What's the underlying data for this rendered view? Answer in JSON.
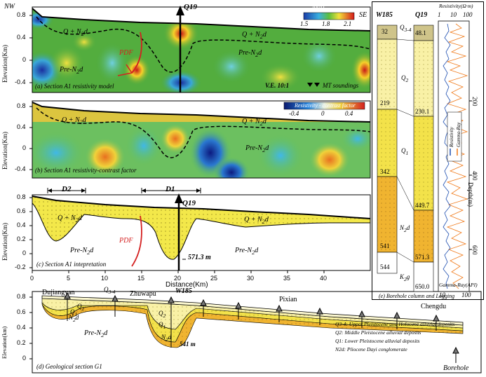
{
  "panel_a": {
    "nw": "NW",
    "se": "SE",
    "q19": "Q19",
    "unit_q": "Q + N",
    "unit_q_sub": "2",
    "unit_q_tail": "d",
    "unit_q2": "Q + N",
    "unit_q2_sub": "2",
    "unit_q2_tail": "d",
    "pre": "Pre-N",
    "pre_sub": "2",
    "pre_tail": "d",
    "pre2": "Pre-N",
    "pre2_sub": "2",
    "pre2_tail": "d",
    "pdf": "PDF",
    "caption": "(a) Section A1 resistivity model",
    "ve": "V.E. 10:1",
    "mt": "MT soundings",
    "colorbar_title": "lg(ρ)",
    "colorbar_ticks": [
      "1.5",
      "1.8",
      "2.1"
    ],
    "ylabel": "Elevation(Km)",
    "yticks": [
      "0.8",
      "0.4",
      "0",
      "-0.4"
    ]
  },
  "panel_b": {
    "unit_q": "Q + N",
    "unit_q_sub": "2",
    "unit_q_tail": "d",
    "unit_q2": "Q + N",
    "unit_q2_sub": "2",
    "unit_q2_tail": "d",
    "pre": "Pre-N",
    "pre_sub": "2",
    "pre_tail": "d",
    "caption": "(b) Section A1 resistivity-contrast factor",
    "colorbar_title": "Resistivity - contrast factor",
    "colorbar_ticks": [
      "-0.4",
      "0",
      "0.4"
    ],
    "ylabel": "Elevation(Km)",
    "yticks": [
      "0.8",
      "0.4",
      "0",
      "-0.4"
    ]
  },
  "panel_c": {
    "d1": "D1",
    "d2": "D2",
    "q19": "Q19",
    "unit_q": "Q + N",
    "unit_q_sub": "2",
    "unit_q_tail": "d",
    "unit_q2": "Q + N",
    "unit_q2_sub": "2",
    "unit_q2_tail": "d",
    "pre": "Pre-N",
    "pre_sub": "2",
    "pre_tail": "d",
    "pre2": "Pre-N",
    "pre2_sub": "2",
    "pre2_tail": "d",
    "pdf": "PDF",
    "depth": "571.3 m",
    "caption": "(c) Section A1 intepretation",
    "ylabel": "Elevation(Km)",
    "yticks": [
      "0.8",
      "0.6",
      "0.4",
      "0.2",
      "0",
      "-0.2"
    ],
    "xticks": [
      "0",
      "5",
      "10",
      "15",
      "20",
      "25",
      "30",
      "35",
      "40"
    ],
    "xlabel": "Distance(Km)"
  },
  "panel_d": {
    "places": [
      "Dujiangyan",
      "Zhuwapu",
      "Pixian",
      "Chengdu"
    ],
    "w185": "W185",
    "q34": "Q",
    "q34_sub": "3-4",
    "q2": "Q",
    "q2_sub": "2",
    "q1": "Q",
    "q1_sub": "1",
    "q2b": "Q",
    "q2b_sub": "2",
    "q1b": "Q",
    "q1b_sub": "1",
    "n2d": "N",
    "n2d_sub": "2",
    "n2d_tail": "d",
    "n2d2": "N",
    "n2d2_sub": "2",
    "n2d2_tail": "d",
    "pre": "Pre-N",
    "pre_sub": "2",
    "pre_tail": "d",
    "depth": "541 m",
    "caption": "(d) Geological section G1",
    "ylabel": "Elevation(km)",
    "yticks": [
      "0.8",
      "0.6",
      "0.4",
      "0.2",
      "0"
    ],
    "legend": [
      "Q3-4: Upper Pleistocene and Holocene alluvial deposits",
      "Q2: Middle Pleistocene alluvial deposits",
      "Q1: Lower Pleistocene alluvial deposits",
      "N2d: Pliocene Dayi conglomerate"
    ],
    "borehole": "Borehole"
  },
  "panel_e": {
    "w185": "W185",
    "q19": "Q19",
    "w185_depths": [
      "32",
      "219",
      "342",
      "541",
      "544"
    ],
    "q19_depths": [
      "48.1",
      "230.1",
      "449.7",
      "571.3",
      "650.0"
    ],
    "units": [
      {
        "t": "Q",
        "s": "3-4",
        "x": ""
      },
      {
        "t": "Q",
        "s": "2",
        "x": ""
      },
      {
        "t": "Q",
        "s": "1",
        "x": ""
      },
      {
        "t": "N",
        "s": "2",
        "x": "d"
      },
      {
        "t": "K",
        "s": "2",
        "x": "g"
      }
    ],
    "resistivity_label": "Resistivity(Ω·m)",
    "res_ticks": [
      "1",
      "10",
      "100"
    ],
    "gamma_label": "Gamma-Ray(API)",
    "gamma_ticks": [
      "10",
      "100"
    ],
    "depth_label": "Depth(m)",
    "depth_ticks": [
      "200",
      "400",
      "600"
    ],
    "legend_res": "Resistivity",
    "legend_gamma": "Gamma-Ray",
    "caption": "(e) Borehole column and Logging"
  },
  "colors": {
    "yellow": "#f5e84a",
    "orange": "#f0a51e",
    "lightyellow": "#f9f1a6",
    "red": "#d42020",
    "log_blue": "#1f4fb0",
    "log_orange": "#f07a1a"
  }
}
